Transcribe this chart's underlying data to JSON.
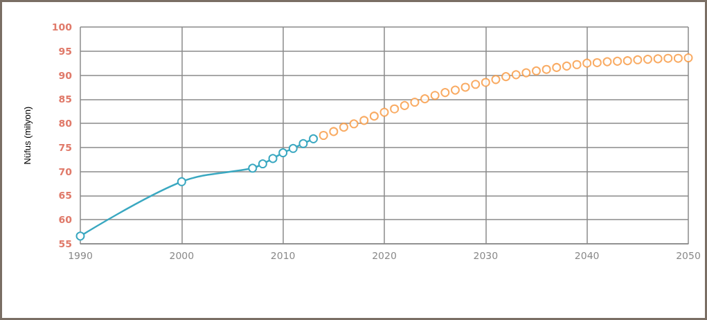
{
  "chart_data": {
    "type": "line",
    "ylabel": "Nüfus (milyon)",
    "xlim": [
      1990,
      2050
    ],
    "xticks": [
      1990,
      2000,
      2010,
      2020,
      2030,
      2040,
      2050
    ],
    "ylim": [
      55,
      100
    ],
    "yticks": [
      55,
      60,
      65,
      70,
      75,
      80,
      85,
      90,
      95,
      100
    ],
    "grid": true,
    "marker": "circle",
    "line_style": "solid",
    "series": [
      {
        "color": "#3aa8c1",
        "x": [
          1990,
          2000,
          2007,
          2008,
          2009,
          2010,
          2011,
          2012,
          2013
        ],
        "values": [
          56.6,
          67.9,
          70.7,
          71.6,
          72.7,
          73.9,
          74.8,
          75.8,
          76.8
        ]
      },
      {
        "type": "scatter",
        "color": "#f7963c",
        "x": [
          2014,
          2015,
          2016,
          2017,
          2018,
          2019,
          2020,
          2021,
          2022,
          2023,
          2024,
          2025,
          2026,
          2027,
          2028,
          2029,
          2030,
          2031,
          2032,
          2033,
          2034,
          2035,
          2036,
          2037,
          2038,
          2039,
          2040,
          2041,
          2042,
          2043,
          2044,
          2045,
          2046,
          2047,
          2048,
          2049,
          2050
        ],
        "values": [
          77.5,
          78.3,
          79.2,
          79.9,
          80.6,
          81.5,
          82.3,
          83.0,
          83.7,
          84.4,
          85.1,
          85.8,
          86.4,
          86.9,
          87.5,
          88.1,
          88.5,
          89.1,
          89.7,
          90.1,
          90.5,
          90.9,
          91.2,
          91.6,
          91.9,
          92.2,
          92.5,
          92.6,
          92.8,
          92.9,
          93.0,
          93.2,
          93.3,
          93.4,
          93.5,
          93.5,
          93.6
        ]
      }
    ]
  }
}
